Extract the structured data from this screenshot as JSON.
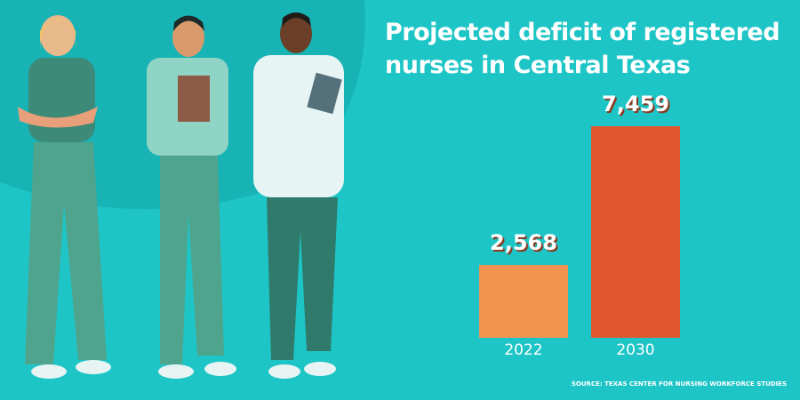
{
  "chart_data": {
    "type": "bar",
    "title": "Projected deficit of registered nurses in Central Texas",
    "categories": [
      "2022",
      "2030"
    ],
    "values": [
      2568,
      7459
    ],
    "value_labels": [
      "2,568",
      "7,459"
    ],
    "colors": [
      "#f39350",
      "#e0552b"
    ],
    "source": "SOURCE: TEXAS CENTER FOR NURSING WORKFORCE STUDIES"
  }
}
